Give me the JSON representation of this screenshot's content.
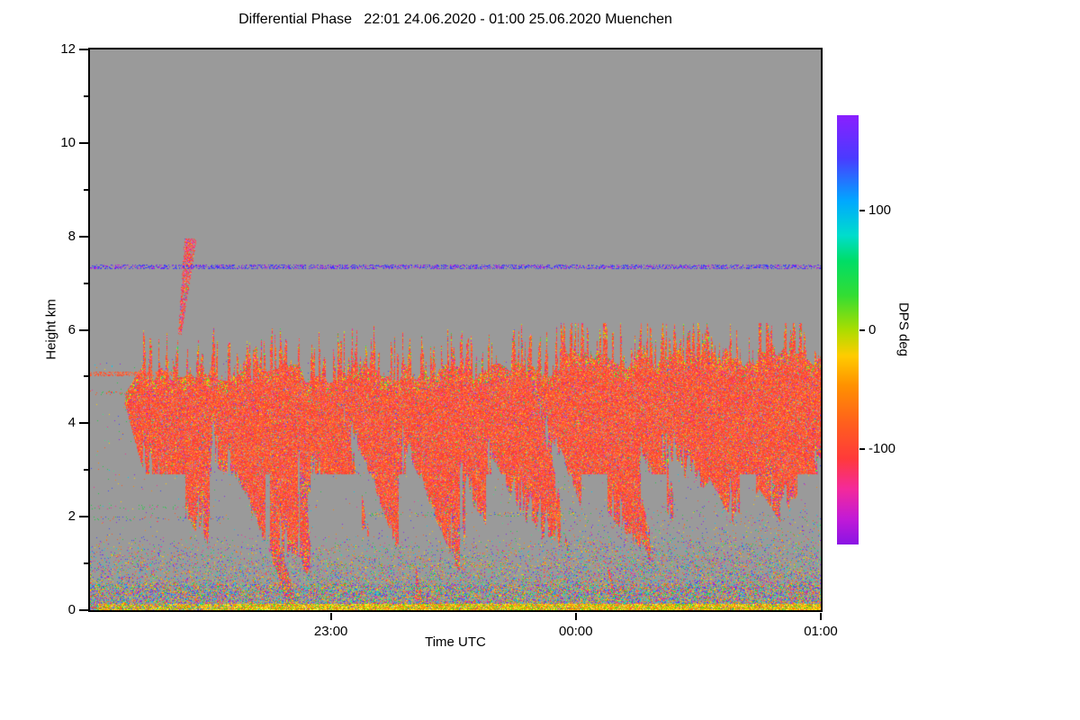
{
  "chart_data": {
    "type": "heatmap",
    "title": "Differential Phase   22:01 24.06.2020 - 01:00 25.06.2020 Muenchen",
    "xlabel": "Time UTC",
    "ylabel": "Height km",
    "x_start_label": "22:01 24.06.2020",
    "x_end_label": "01:00 25.06.2020",
    "x_range_minutes": [
      0,
      179
    ],
    "x_ticks": [
      {
        "label": "23:00",
        "minute": 59
      },
      {
        "label": "00:00",
        "minute": 119
      },
      {
        "label": "01:00",
        "minute": 179
      }
    ],
    "ylim": [
      0,
      12
    ],
    "y_major_ticks": [
      0,
      2,
      4,
      6,
      8,
      10,
      12
    ],
    "y_minor_ticks": [
      1,
      3,
      5,
      7,
      9,
      11
    ],
    "grid": false,
    "no_data_color": "#9a9a9a",
    "colorbar": {
      "label": "DPS deg",
      "range": [
        -180,
        180
      ],
      "ticks": [
        100,
        0,
        -100
      ],
      "stops": [
        [
          0,
          "#8a1fff"
        ],
        [
          0.1,
          "#4a3bff"
        ],
        [
          0.2,
          "#00a8ff"
        ],
        [
          0.28,
          "#00ddcc"
        ],
        [
          0.34,
          "#00dd66"
        ],
        [
          0.42,
          "#33dd33"
        ],
        [
          0.5,
          "#aadd00"
        ],
        [
          0.56,
          "#ffcc00"
        ],
        [
          0.63,
          "#ff9100"
        ],
        [
          0.72,
          "#ff5e1e"
        ],
        [
          0.8,
          "#ff3a3a"
        ],
        [
          0.87,
          "#f42a9a"
        ],
        [
          0.94,
          "#c21ad6"
        ],
        [
          1,
          "#8a14e4"
        ]
      ]
    },
    "palette": {
      "main": [
        "#ff4a2a",
        "#ff5c22",
        "#ff6f30",
        "#f8432f",
        "#ff8433",
        "#f23b3b",
        "#ff5540"
      ],
      "speckle": [
        "#ee2f9a",
        "#ff2f6a",
        "#ffc400",
        "#ffe000",
        "#22dd55",
        "#4455ff",
        "#9922ee"
      ],
      "pinks": [
        "#ee2f9a",
        "#ff4a7a",
        "#ff66aa",
        "#ff3a55"
      ],
      "edge_top": [
        "#22dd55",
        "#ffd800",
        "#ee2f9a",
        "#aaff00",
        "#ff8800"
      ],
      "clutter": [
        "#22cc44",
        "#ff5522",
        "#3b46ff",
        "#ee2f9a",
        "#ffd000",
        "#00ccee",
        "#8822ee",
        "#ff8800",
        "#44dd88"
      ],
      "surface": [
        "#ffd800",
        "#ff9900",
        "#bfe000",
        "#ff6a22",
        "#55cc22",
        "#ffe44d"
      ]
    },
    "features": {
      "precip_band": {
        "description": "Rain and virga fall streaks, DPS mostly -60 to -130 deg (orange-red), echo top 4.8-6 km, streaks sloping down toward later times",
        "bottom_profile": [
          [
            8,
            4.6
          ],
          [
            13,
            3.0
          ],
          [
            19,
            1.0
          ],
          [
            25,
            0.05
          ],
          [
            100,
            0.05
          ],
          [
            106,
            1.8
          ],
          [
            118,
            1.0
          ],
          [
            124,
            0.4
          ],
          [
            132,
            0.05
          ],
          [
            140,
            0.6
          ],
          [
            146,
            2.2
          ],
          [
            152,
            2.8
          ],
          [
            158,
            1.8
          ],
          [
            164,
            2.6
          ],
          [
            169,
            1.9
          ],
          [
            175,
            2.7
          ],
          [
            179,
            2.9
          ]
        ]
      },
      "isolated_cell": {
        "description": "Small isolated echo 22:22-22:28 UTC between 6 and 7.9 km",
        "t_base": 22.0,
        "lean": 1.3,
        "h0": 5.9,
        "h1": 7.95,
        "hw0": 0.4,
        "hw1": 1.1
      },
      "speckle_lines": [
        {
          "h": 7.35,
          "t0": 0,
          "t1": 179,
          "d": 0.45,
          "colors": [
            "#3b46ff",
            "#5522ff",
            "#cc22cc",
            "#3344ee"
          ]
        },
        {
          "h": 5.05,
          "t0": 0,
          "t1": 20,
          "d": 0.55,
          "colors": [
            "#ff4a2a",
            "#ff7744"
          ]
        },
        {
          "h": 2.05,
          "t0": 68,
          "t1": 122,
          "d": 0.13,
          "colors": [
            "#22cc44",
            "#ff5522",
            "#ffd000",
            "#3b46ff"
          ]
        },
        {
          "h": 1.95,
          "t0": 0,
          "t1": 34,
          "d": 0.1,
          "colors": [
            "#22cc44",
            "#ff5522",
            "#3b46ff"
          ]
        },
        {
          "h": 2.2,
          "t0": 0,
          "t1": 26,
          "d": 0.07,
          "colors": [
            "#22cc44",
            "#ee2f9a"
          ]
        },
        {
          "h": 2.6,
          "t0": 96,
          "t1": 122,
          "d": 0.08,
          "colors": [
            "#22cc44",
            "#ffd000",
            "#ff5522"
          ]
        },
        {
          "h": 4.65,
          "t0": 0,
          "t1": 13,
          "d": 0.1,
          "colors": [
            "#22cc44",
            "#ff5522"
          ]
        },
        {
          "h": 0.95,
          "t0": 55,
          "t1": 115,
          "d": 0.09,
          "colors": [
            "#ffd000",
            "#ff8800",
            "#22cc44"
          ]
        }
      ],
      "ground_clutter": {
        "description": "Multicolor noise speckle below ~1.6 km, denser near surface",
        "height_max": 1.65
      },
      "surface_bright_line": {
        "description": "Yellow-orange bright line at 0-0.15 km across the image",
        "height_max": 0.14
      }
    }
  }
}
